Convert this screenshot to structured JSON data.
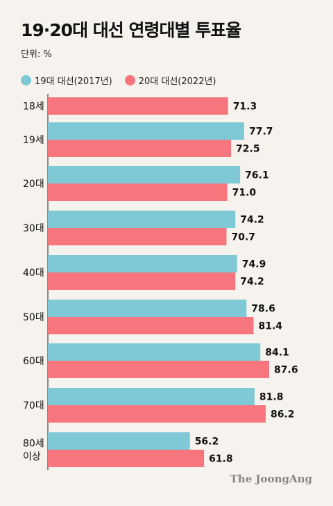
{
  "chart_data": {
    "type": "bar",
    "orientation": "horizontal",
    "title": "19·20대 대선 연령대별 투표율",
    "unit_label": "단위: %",
    "categories": [
      "18세",
      "19세",
      "20대",
      "30대",
      "40대",
      "50대",
      "60대",
      "70대",
      "80세 이상"
    ],
    "series": [
      {
        "name": "19대 대선(2017년)",
        "color": "#7fc8d5",
        "values": [
          null,
          77.7,
          76.1,
          74.2,
          74.9,
          78.6,
          84.1,
          81.8,
          56.2
        ]
      },
      {
        "name": "20대 대선(2022년)",
        "color": "#f7757c",
        "values": [
          71.3,
          72.5,
          71.0,
          70.7,
          74.2,
          81.4,
          87.6,
          86.2,
          61.8
        ]
      }
    ],
    "xlim": [
      0,
      100
    ],
    "grid": false,
    "legend_position": "top-left",
    "source": "The JoongAng"
  }
}
